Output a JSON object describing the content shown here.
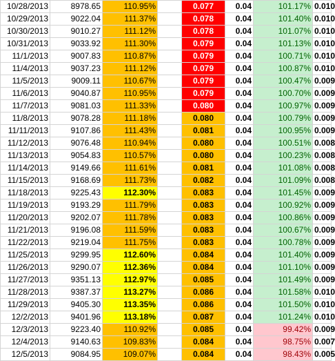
{
  "colors": {
    "orange_fill": "#ffc000",
    "yellow_fill": "#ffff00",
    "red_fill": "#ff0000",
    "green_fill": "#c6efce",
    "green_text": "#006100",
    "pink_fill": "#ffc7ce",
    "pink_text": "#9c0006"
  },
  "rows": [
    {
      "date": "10/28/2013",
      "price": "8978.65",
      "pct": "110.95%",
      "pct_level": "normal",
      "rate": "0.077",
      "rate_level": "red",
      "fee": "0.04",
      "ratio": "101.17%",
      "ratio_level": "pos",
      "last": "0.010"
    },
    {
      "date": "10/29/2013",
      "price": "9022.04",
      "pct": "111.37%",
      "pct_level": "normal",
      "rate": "0.078",
      "rate_level": "red",
      "fee": "0.04",
      "ratio": "101.40%",
      "ratio_level": "pos",
      "last": "0.010"
    },
    {
      "date": "10/30/2013",
      "price": "9010.27",
      "pct": "111.12%",
      "pct_level": "normal",
      "rate": "0.078",
      "rate_level": "red",
      "fee": "0.04",
      "ratio": "101.07%",
      "ratio_level": "pos",
      "last": "0.010"
    },
    {
      "date": "10/31/2013",
      "price": "9033.92",
      "pct": "111.30%",
      "pct_level": "normal",
      "rate": "0.079",
      "rate_level": "red",
      "fee": "0.04",
      "ratio": "101.13%",
      "ratio_level": "pos",
      "last": "0.010"
    },
    {
      "date": "11/1/2013",
      "price": "9007.83",
      "pct": "110.87%",
      "pct_level": "normal",
      "rate": "0.079",
      "rate_level": "red",
      "fee": "0.04",
      "ratio": "100.71%",
      "ratio_level": "pos",
      "last": "0.010"
    },
    {
      "date": "11/4/2013",
      "price": "9037.23",
      "pct": "111.12%",
      "pct_level": "normal",
      "rate": "0.079",
      "rate_level": "red",
      "fee": "0.04",
      "ratio": "100.87%",
      "ratio_level": "pos",
      "last": "0.010"
    },
    {
      "date": "11/5/2013",
      "price": "9009.11",
      "pct": "110.67%",
      "pct_level": "normal",
      "rate": "0.079",
      "rate_level": "red",
      "fee": "0.04",
      "ratio": "100.47%",
      "ratio_level": "pos",
      "last": "0.009"
    },
    {
      "date": "11/6/2013",
      "price": "9040.87",
      "pct": "110.95%",
      "pct_level": "normal",
      "rate": "0.079",
      "rate_level": "red",
      "fee": "0.04",
      "ratio": "100.70%",
      "ratio_level": "pos",
      "last": "0.009"
    },
    {
      "date": "11/7/2013",
      "price": "9081.03",
      "pct": "111.33%",
      "pct_level": "normal",
      "rate": "0.080",
      "rate_level": "red",
      "fee": "0.04",
      "ratio": "100.97%",
      "ratio_level": "pos",
      "last": "0.009"
    },
    {
      "date": "11/8/2013",
      "price": "9078.28",
      "pct": "111.18%",
      "pct_level": "normal",
      "rate": "0.080",
      "rate_level": "orange",
      "fee": "0.04",
      "ratio": "100.79%",
      "ratio_level": "pos",
      "last": "0.009"
    },
    {
      "date": "11/11/2013",
      "price": "9107.86",
      "pct": "111.43%",
      "pct_level": "normal",
      "rate": "0.081",
      "rate_level": "orange",
      "fee": "0.04",
      "ratio": "100.95%",
      "ratio_level": "pos",
      "last": "0.009"
    },
    {
      "date": "11/12/2013",
      "price": "9076.48",
      "pct": "110.94%",
      "pct_level": "normal",
      "rate": "0.080",
      "rate_level": "orange",
      "fee": "0.04",
      "ratio": "100.51%",
      "ratio_level": "pos",
      "last": "0.008"
    },
    {
      "date": "11/13/2013",
      "price": "9054.83",
      "pct": "110.57%",
      "pct_level": "normal",
      "rate": "0.080",
      "rate_level": "orange",
      "fee": "0.04",
      "ratio": "100.23%",
      "ratio_level": "pos",
      "last": "0.008"
    },
    {
      "date": "11/14/2013",
      "price": "9149.66",
      "pct": "111.61%",
      "pct_level": "normal",
      "rate": "0.081",
      "rate_level": "orange",
      "fee": "0.04",
      "ratio": "101.08%",
      "ratio_level": "pos",
      "last": "0.008"
    },
    {
      "date": "11/15/2013",
      "price": "9168.69",
      "pct": "111.73%",
      "pct_level": "normal",
      "rate": "0.082",
      "rate_level": "orange",
      "fee": "0.04",
      "ratio": "101.09%",
      "ratio_level": "pos",
      "last": "0.008"
    },
    {
      "date": "11/18/2013",
      "price": "9225.43",
      "pct": "112.30%",
      "pct_level": "high",
      "rate": "0.083",
      "rate_level": "orange",
      "fee": "0.04",
      "ratio": "101.45%",
      "ratio_level": "pos",
      "last": "0.009"
    },
    {
      "date": "11/19/2013",
      "price": "9193.29",
      "pct": "111.79%",
      "pct_level": "normal",
      "rate": "0.083",
      "rate_level": "orange",
      "fee": "0.04",
      "ratio": "100.92%",
      "ratio_level": "pos",
      "last": "0.009"
    },
    {
      "date": "11/20/2013",
      "price": "9202.07",
      "pct": "111.78%",
      "pct_level": "normal",
      "rate": "0.083",
      "rate_level": "orange",
      "fee": "0.04",
      "ratio": "100.86%",
      "ratio_level": "pos",
      "last": "0.009"
    },
    {
      "date": "11/21/2013",
      "price": "9196.08",
      "pct": "111.59%",
      "pct_level": "normal",
      "rate": "0.083",
      "rate_level": "orange",
      "fee": "0.04",
      "ratio": "100.67%",
      "ratio_level": "pos",
      "last": "0.009"
    },
    {
      "date": "11/22/2013",
      "price": "9219.04",
      "pct": "111.75%",
      "pct_level": "normal",
      "rate": "0.083",
      "rate_level": "orange",
      "fee": "0.04",
      "ratio": "100.78%",
      "ratio_level": "pos",
      "last": "0.009"
    },
    {
      "date": "11/25/2013",
      "price": "9299.95",
      "pct": "112.60%",
      "pct_level": "high",
      "rate": "0.084",
      "rate_level": "orange",
      "fee": "0.04",
      "ratio": "101.40%",
      "ratio_level": "pos",
      "last": "0.009"
    },
    {
      "date": "11/26/2013",
      "price": "9290.07",
      "pct": "112.36%",
      "pct_level": "high",
      "rate": "0.084",
      "rate_level": "orange",
      "fee": "0.04",
      "ratio": "101.10%",
      "ratio_level": "pos",
      "last": "0.009"
    },
    {
      "date": "11/27/2013",
      "price": "9351.13",
      "pct": "112.97%",
      "pct_level": "high",
      "rate": "0.085",
      "rate_level": "orange",
      "fee": "0.04",
      "ratio": "101.49%",
      "ratio_level": "pos",
      "last": "0.009"
    },
    {
      "date": "11/28/2013",
      "price": "9387.37",
      "pct": "113.27%",
      "pct_level": "high",
      "rate": "0.086",
      "rate_level": "orange",
      "fee": "0.04",
      "ratio": "101.58%",
      "ratio_level": "pos",
      "last": "0.010"
    },
    {
      "date": "11/29/2013",
      "price": "9405.30",
      "pct": "113.35%",
      "pct_level": "high",
      "rate": "0.086",
      "rate_level": "orange",
      "fee": "0.04",
      "ratio": "101.50%",
      "ratio_level": "pos",
      "last": "0.010"
    },
    {
      "date": "12/2/2013",
      "price": "9401.96",
      "pct": "113.18%",
      "pct_level": "high",
      "rate": "0.087",
      "rate_level": "orange",
      "fee": "0.04",
      "ratio": "101.24%",
      "ratio_level": "pos",
      "last": "0.010"
    },
    {
      "date": "12/3/2013",
      "price": "9223.40",
      "pct": "110.92%",
      "pct_level": "normal",
      "rate": "0.085",
      "rate_level": "orange",
      "fee": "0.04",
      "ratio": "99.42%",
      "ratio_level": "neg",
      "last": "0.009"
    },
    {
      "date": "12/4/2013",
      "price": "9140.63",
      "pct": "109.83%",
      "pct_level": "normal",
      "rate": "0.084",
      "rate_level": "orange",
      "fee": "0.04",
      "ratio": "98.75%",
      "ratio_level": "neg",
      "last": "0.007"
    },
    {
      "date": "12/5/2013",
      "price": "9084.95",
      "pct": "109.07%",
      "pct_level": "normal",
      "rate": "0.084",
      "rate_level": "orange",
      "fee": "0.04",
      "ratio": "98.43%",
      "ratio_level": "neg",
      "last": "0.005"
    }
  ]
}
